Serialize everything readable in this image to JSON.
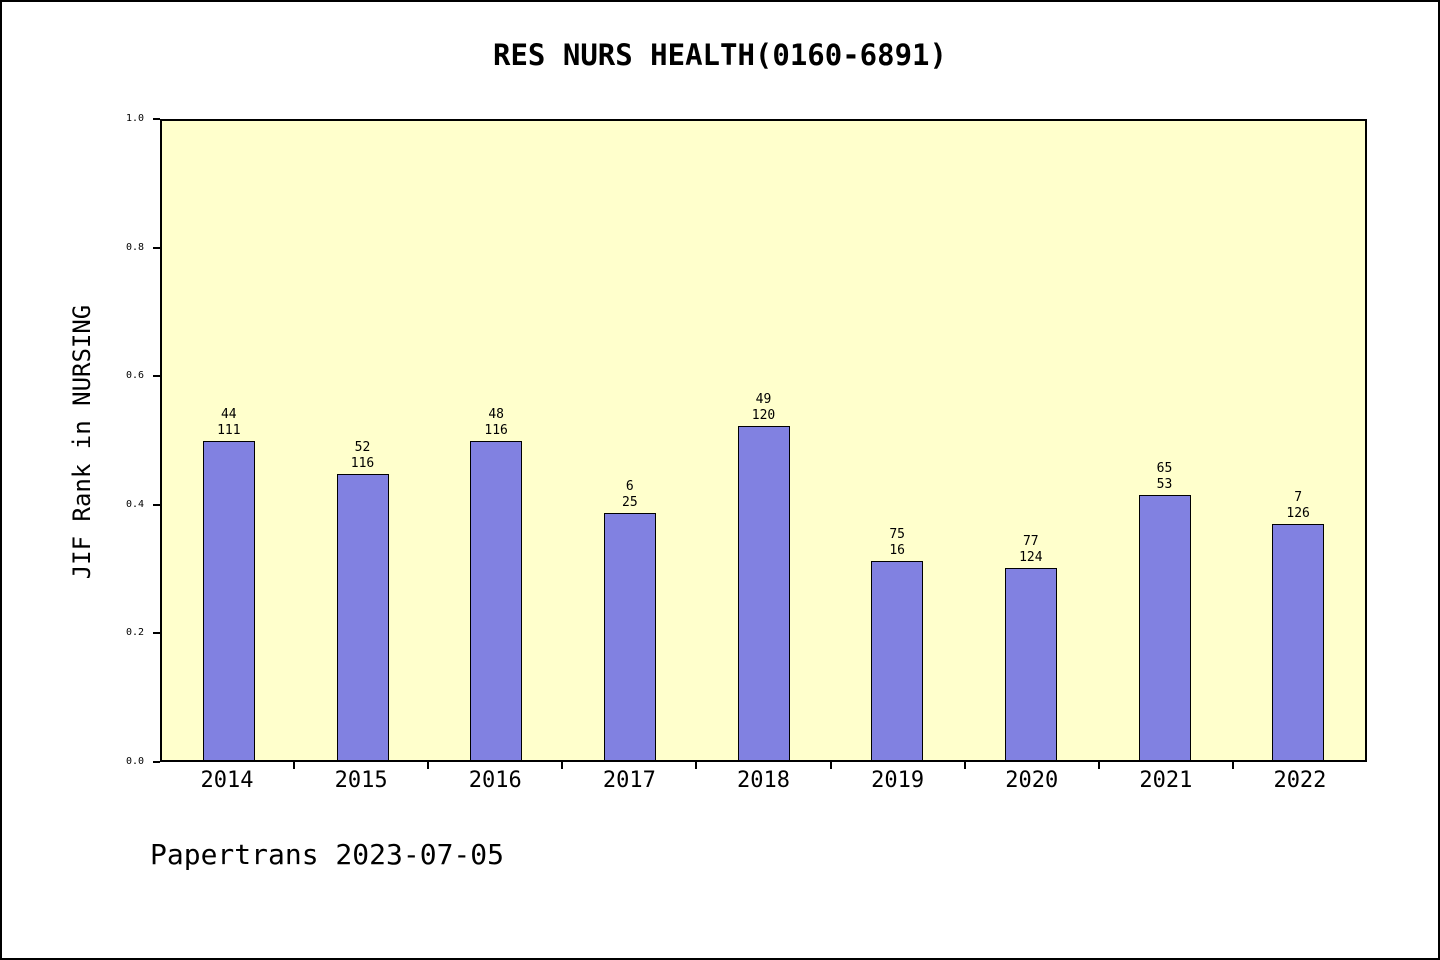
{
  "chart": {
    "title": "RES NURS HEALTH(0160-6891)",
    "ylabel": "JIF Rank in NURSING",
    "footer": "Papertrans 2023-07-05",
    "colors": {
      "bar_fill": "#8181e1",
      "bar_border": "#000000",
      "plot_background": "#ffffcc",
      "page_background": "#ffffff",
      "axis": "#000000"
    }
  },
  "chart_data": {
    "type": "bar",
    "title": "RES NURS HEALTH(0160-6891)",
    "xlabel": "",
    "ylabel": "JIF Rank in NURSING",
    "categories": [
      "2014",
      "2015",
      "2016",
      "2017",
      "2018",
      "2019",
      "2020",
      "2021",
      "2022"
    ],
    "values": [
      0.5,
      0.447,
      0.5,
      0.387,
      0.523,
      0.311,
      0.3,
      0.415,
      0.37
    ],
    "bar_labels": [
      [
        "44",
        "111"
      ],
      [
        "52",
        "116"
      ],
      [
        "48",
        "116"
      ],
      [
        "6",
        "25"
      ],
      [
        "49",
        "120"
      ],
      [
        "75",
        "16"
      ],
      [
        "77",
        "124"
      ],
      [
        "65",
        "53"
      ],
      [
        "7",
        "126"
      ]
    ],
    "ylim": [
      0.0,
      1.0
    ],
    "yticks": [
      "0.0",
      "0.2",
      "0.4",
      "0.6",
      "0.8",
      "1.0"
    ],
    "grid": false,
    "legend_position": "none",
    "annotations": [
      "Papertrans 2023-07-05"
    ]
  }
}
